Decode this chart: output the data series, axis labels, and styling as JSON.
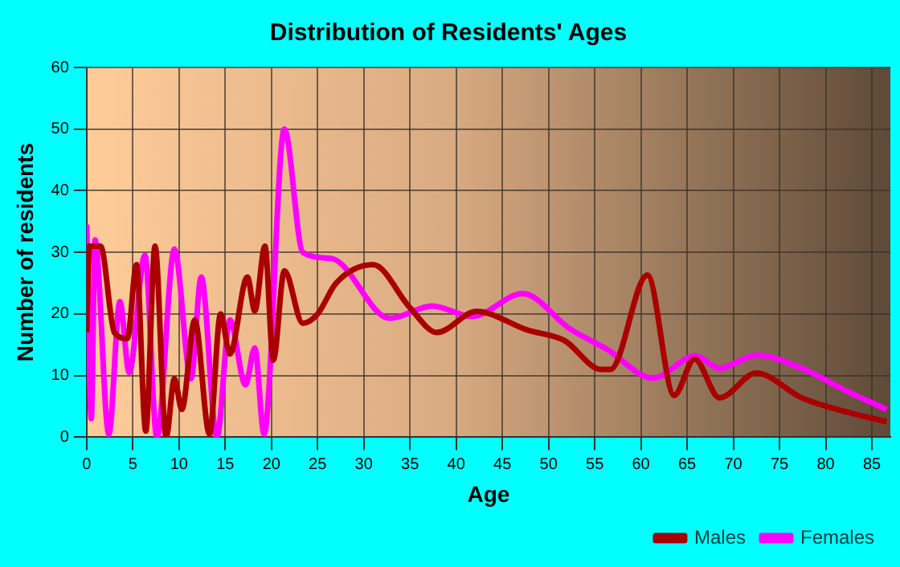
{
  "chart_data": {
    "type": "line",
    "title": "Distribution of Residents' Ages",
    "xlabel": "Age",
    "ylabel": "Number of residents",
    "xlim": [
      0,
      87
    ],
    "xticks": [
      0,
      5,
      10,
      15,
      20,
      25,
      30,
      35,
      40,
      45,
      50,
      55,
      60,
      65,
      70,
      75,
      80,
      85
    ],
    "ylim": [
      0,
      60
    ],
    "yticks": [
      0,
      10,
      20,
      30,
      40,
      50,
      60
    ],
    "grid": true,
    "legend": "bottom right",
    "marker": "none",
    "line_style": "solid",
    "series": [
      {
        "name": "Males",
        "color": "#aa0000",
        "x": [
          0,
          0.3,
          1.5,
          3,
          4.4,
          5.4,
          6.4,
          7.4,
          8.6,
          9.5,
          10.3,
          11.7,
          13.3,
          14.5,
          15.5,
          17.4,
          18.2,
          19.3,
          20.2,
          21.4,
          23.4,
          25,
          27,
          31,
          35,
          37.9,
          42.2,
          47.7,
          51.7,
          55.7,
          56.7,
          60.7,
          63.6,
          65.8,
          68.5,
          72.5,
          77.4,
          82,
          86.6
        ],
        "values": [
          17,
          31,
          31,
          17,
          16,
          28,
          1,
          31,
          0,
          9.5,
          4.5,
          19,
          0.5,
          20,
          13.5,
          26,
          20.5,
          31,
          12.5,
          27,
          18.5,
          20,
          25,
          28,
          21,
          17,
          20.4,
          17.4,
          15.7,
          11,
          11,
          26.3,
          6.8,
          12.7,
          6.4,
          10.4,
          6.4,
          4.2,
          2.5
        ]
      },
      {
        "name": "Females",
        "color": "#ff00ff",
        "x": [
          0,
          0.5,
          0.9,
          2.4,
          3.6,
          4.6,
          6.3,
          7.6,
          9.5,
          11.3,
          12.4,
          14.1,
          15.5,
          17.2,
          18.2,
          19.2,
          21.4,
          23.4,
          26.5,
          32.8,
          37.4,
          41.7,
          47.2,
          52.3,
          56.3,
          61.3,
          65.9,
          68.5,
          72.5,
          77.4,
          82,
          86.6
        ],
        "values": [
          34.5,
          3,
          32,
          0.5,
          22,
          10.5,
          29.5,
          0,
          30.5,
          9.5,
          26,
          0,
          19,
          8.5,
          14.5,
          0.5,
          50,
          30,
          29,
          19.3,
          21.3,
          19.6,
          23.3,
          17.6,
          14.3,
          9.6,
          13.2,
          11.2,
          13.3,
          11.2,
          7.7,
          4.5
        ]
      }
    ]
  }
}
